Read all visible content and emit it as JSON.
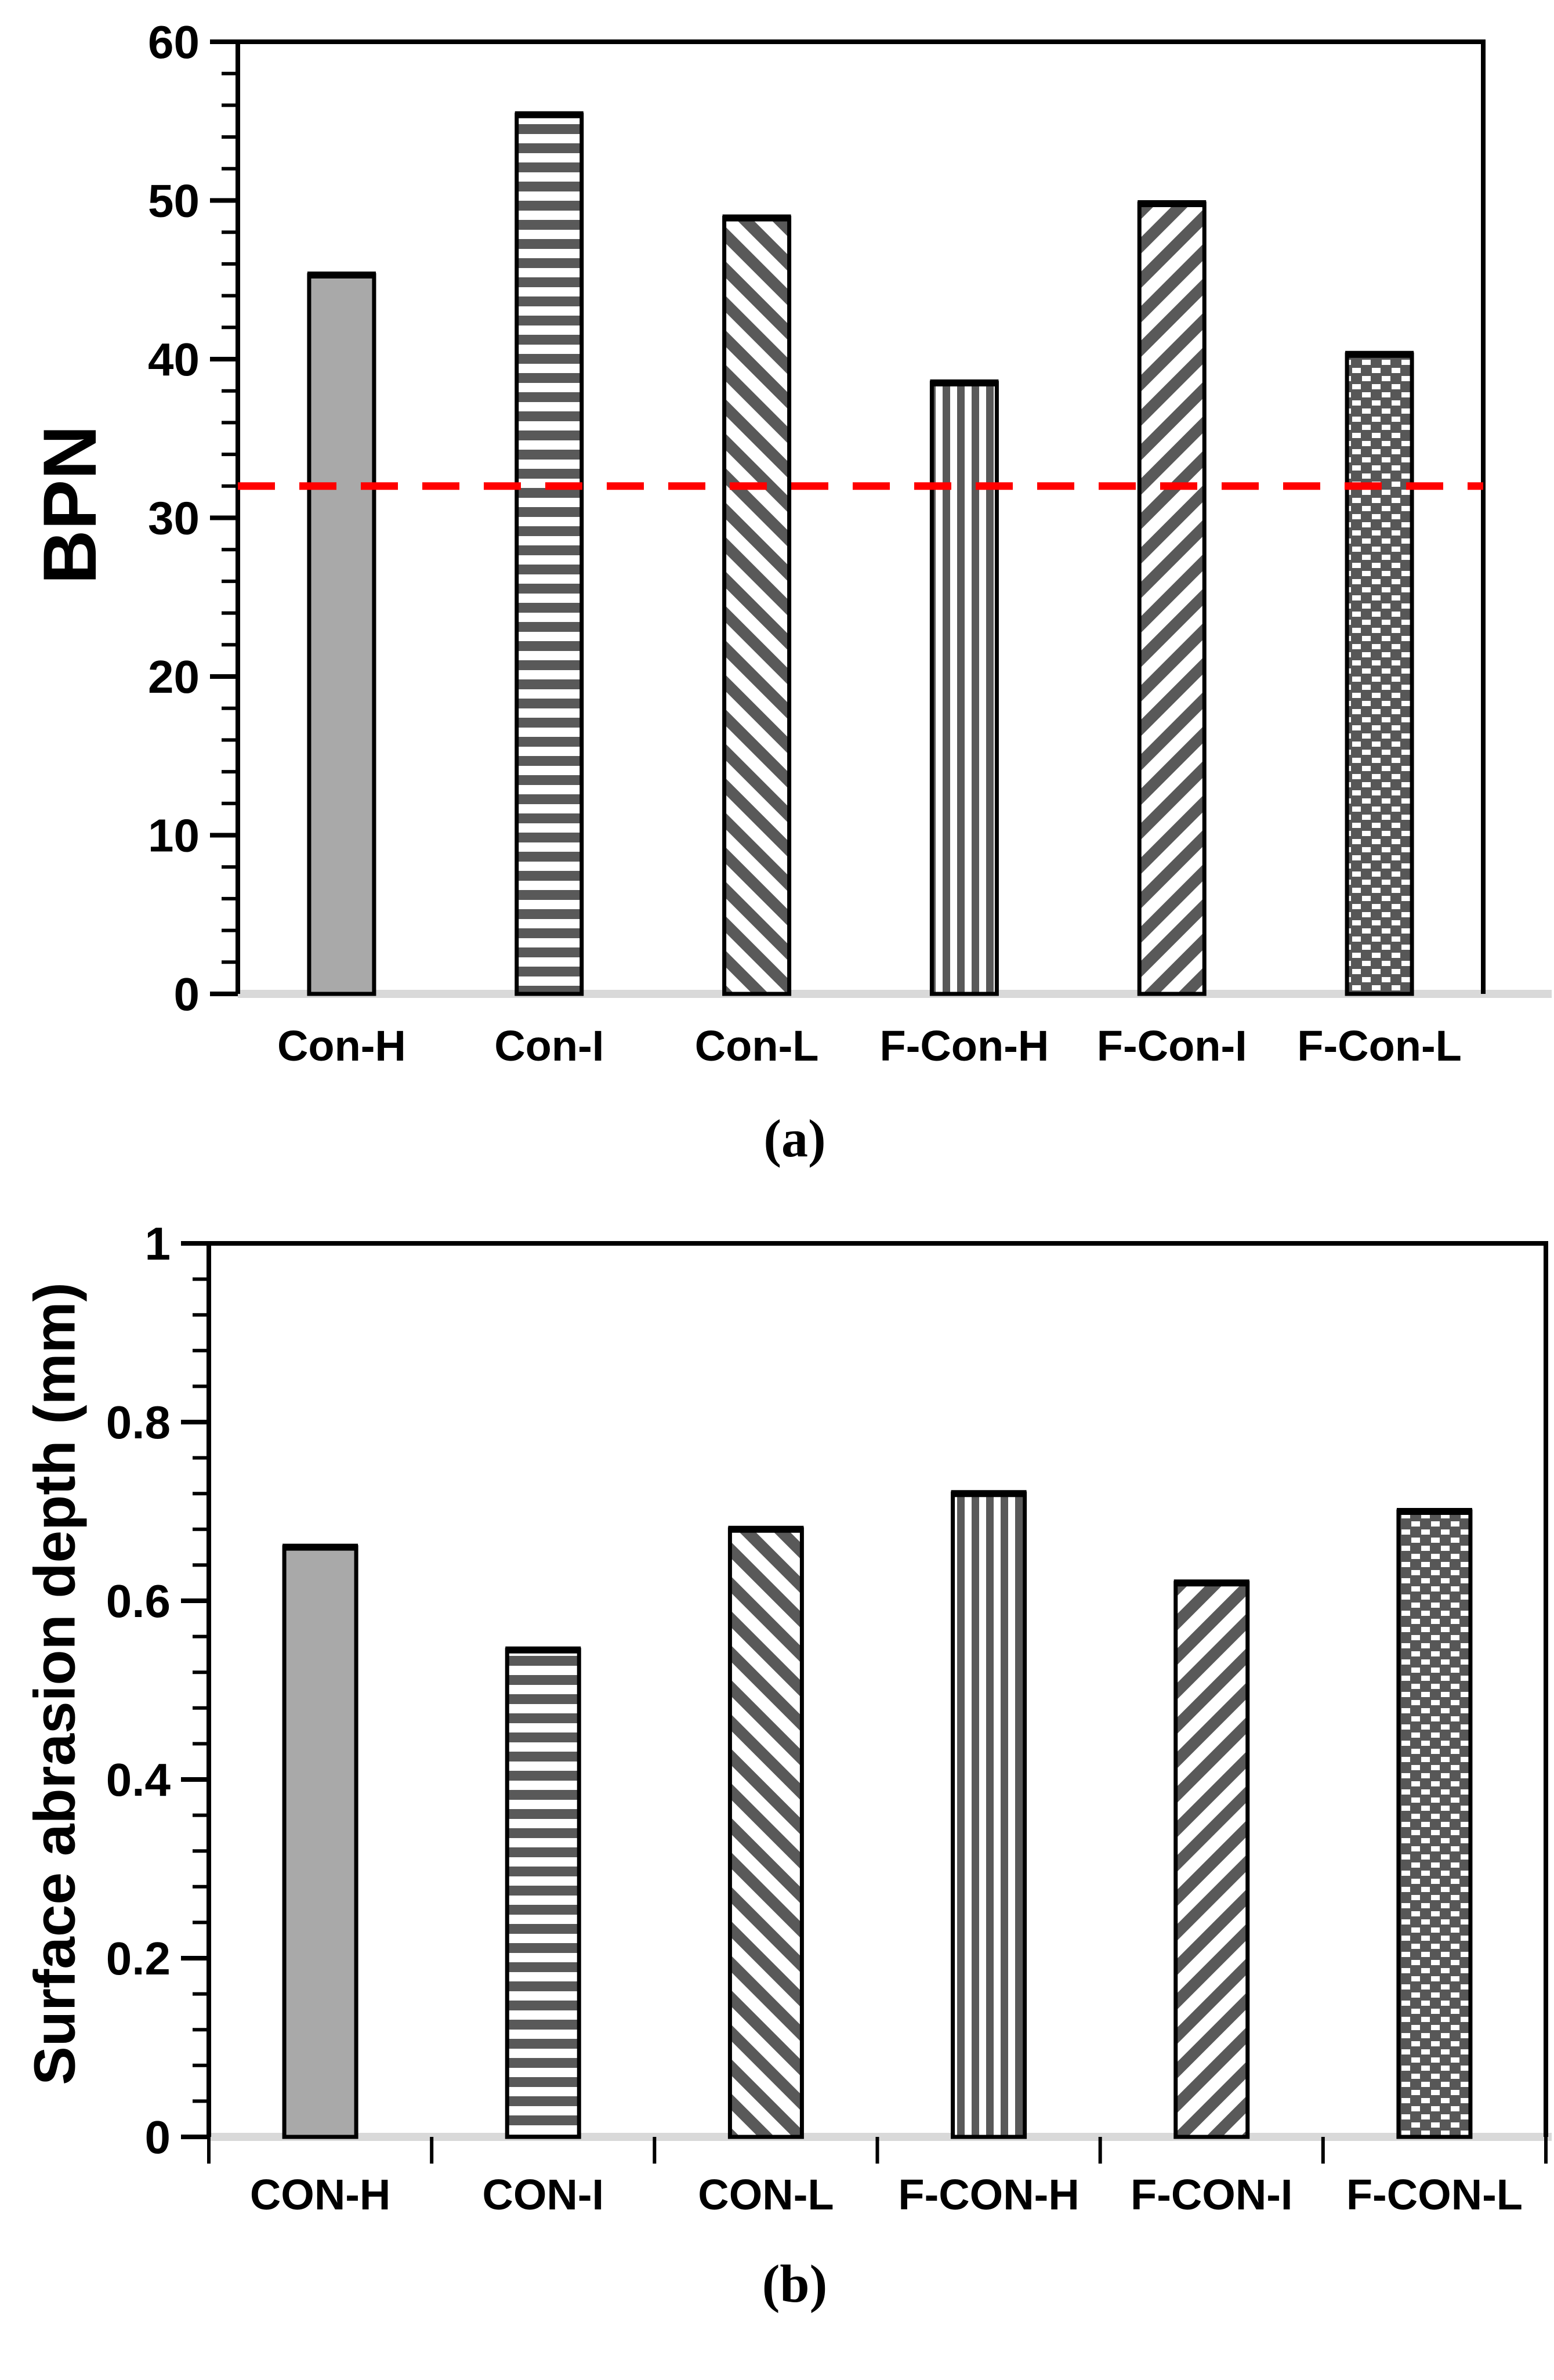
{
  "figure": {
    "background": "#ffffff",
    "panels_count": 2
  },
  "colors": {
    "bar_solid_fill": "#a9a9a9",
    "hatch_dark": "#595959",
    "outline": "#000000",
    "baseline_gray": "#d9d9d9",
    "reference_red": "#ff0000"
  },
  "chart_data": [
    {
      "type": "bar",
      "panel_label": "(a)",
      "ylabel": "BPN",
      "xlabel": "",
      "categories": [
        "Con-H",
        "Con-I",
        "Con-L",
        "F-Con-H",
        "F-Con-I",
        "F-Con-L"
      ],
      "values": [
        45.3,
        55.4,
        48.9,
        38.5,
        49.8,
        40.3
      ],
      "patterns": [
        "solid",
        "horizontal-stripes",
        "diagonal-down-stripes",
        "vertical-stripes",
        "diagonal-up-stripes",
        "brick-check"
      ],
      "ylim": [
        0,
        60
      ],
      "ytick_major": 10,
      "ytick_minor": 2,
      "ytick_labels": [
        "0",
        "10",
        "20",
        "30",
        "40",
        "50",
        "60"
      ],
      "reference_line": {
        "value": 32,
        "color": "#ff0000",
        "style": "dashed"
      },
      "x_boundary_ticks": false,
      "grid": false,
      "legend": null
    },
    {
      "type": "bar",
      "panel_label": "(b)",
      "ylabel": "Surface abrasion depth (mm)",
      "xlabel": "",
      "categories": [
        "CON-H",
        "CON-I",
        "CON-L",
        "F-CON-H",
        "F-CON-I",
        "F-CON-L"
      ],
      "values": [
        0.66,
        0.545,
        0.68,
        0.72,
        0.62,
        0.7
      ],
      "patterns": [
        "solid",
        "horizontal-stripes",
        "diagonal-down-stripes",
        "vertical-stripes",
        "diagonal-up-stripes",
        "brick-check"
      ],
      "ylim": [
        0,
        1
      ],
      "ytick_major": 0.2,
      "ytick_minor": 0.04,
      "ytick_labels": [
        "0",
        "0.2",
        "0.4",
        "0.6",
        "0.8",
        "1"
      ],
      "reference_line": null,
      "x_boundary_ticks": true,
      "grid": false,
      "legend": null
    }
  ]
}
